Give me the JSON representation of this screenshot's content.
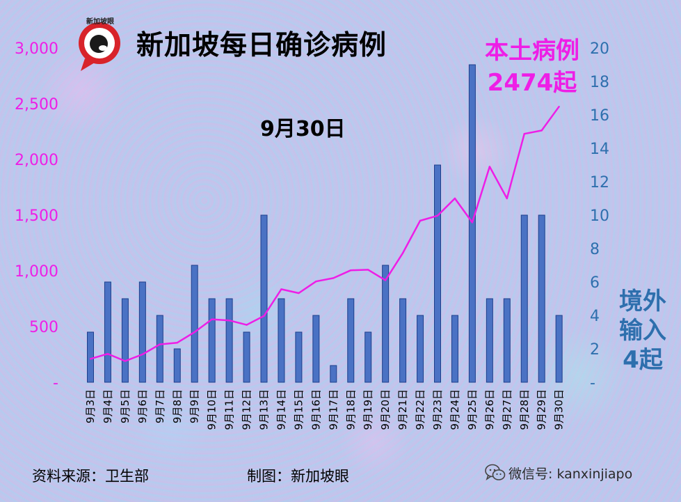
{
  "header": {
    "logo_text": "新加坡眼",
    "title": "新加坡每日确诊病例",
    "date": "9月30日"
  },
  "annotations": {
    "line_label_1": "本土病例",
    "line_label_2": "2474起",
    "bar_label_1": "境外",
    "bar_label_2": "输入",
    "bar_label_3": "4起"
  },
  "footer": {
    "source": "资料来源：卫生部",
    "maker": "制图：新加坡眼",
    "wechat": "微信号: kanxinjiapo"
  },
  "colors": {
    "bar": "#4a72c4",
    "bar_edge": "#1e3f8a",
    "line": "#ee1ee6",
    "right_axis": "#2e6fad",
    "left_axis": "#ee1ee6"
  },
  "chart_data": {
    "type": "bar+line",
    "categories": [
      "9月3日",
      "9月4日",
      "9月5日",
      "9月6日",
      "9月7日",
      "9月8日",
      "9月9日",
      "9月10日",
      "9月11日",
      "9月12日",
      "9月13日",
      "9月14日",
      "9月15日",
      "9月16日",
      "9月17日",
      "9月18日",
      "9月19日",
      "9月20日",
      "9月21日",
      "9月22日",
      "9月23日",
      "9月24日",
      "9月25日",
      "9月26日",
      "9月27日",
      "9月28日",
      "9月29日",
      "9月30日"
    ],
    "left_axis": {
      "range": [
        0,
        3000
      ],
      "ticks": [
        0,
        500,
        1000,
        1500,
        2000,
        2500,
        3000
      ],
      "tick_labels": [
        "-",
        "500",
        "1,000",
        "1,500",
        "2,000",
        "2,500",
        "3,000"
      ]
    },
    "right_axis": {
      "range": [
        0,
        20
      ],
      "ticks": [
        0,
        2,
        4,
        6,
        8,
        10,
        12,
        14,
        16,
        18,
        20
      ],
      "tick_labels": [
        "-",
        "2",
        "4",
        "6",
        "8",
        "10",
        "12",
        "14",
        "16",
        "18",
        "20"
      ]
    },
    "series": [
      {
        "type": "bar",
        "axis": "right",
        "values": [
          3,
          6,
          5,
          6,
          4,
          2,
          7,
          5,
          5,
          3,
          10,
          5,
          3,
          4,
          1,
          5,
          3,
          7,
          5,
          4,
          13,
          4,
          19,
          5,
          5,
          10,
          10,
          4
        ]
      },
      {
        "type": "line",
        "axis": "left",
        "values": [
          210,
          255,
          190,
          250,
          340,
          355,
          450,
          565,
          555,
          515,
          595,
          835,
          800,
          905,
          935,
          1005,
          1010,
          915,
          1160,
          1450,
          1495,
          1650,
          1435,
          1935,
          1650,
          2230,
          2260,
          2474
        ]
      }
    ],
    "legend": "none",
    "grid": false
  }
}
